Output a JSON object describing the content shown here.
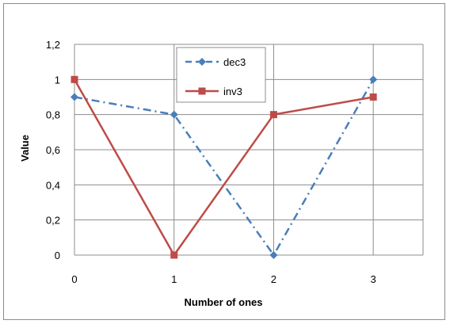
{
  "chart_data": {
    "type": "line",
    "title": "",
    "xlabel": "Number of ones",
    "ylabel": "Value",
    "x": [
      0,
      1,
      2,
      3
    ],
    "xlim": [
      0,
      3.5
    ],
    "ylim": [
      0,
      1.2
    ],
    "y_ticks": [
      "0",
      "0,2",
      "0,4",
      "0,6",
      "0,8",
      "1",
      "1,2"
    ],
    "x_ticks": [
      "0",
      "1",
      "2",
      "3"
    ],
    "grid": true,
    "legend_position": "top-center",
    "series": [
      {
        "name": "dec3",
        "values": [
          0.9,
          0.8,
          0.0,
          1.0
        ],
        "color": "#4a7ebb",
        "marker": "diamond",
        "line_style": "dash-dot"
      },
      {
        "name": "inv3",
        "values": [
          1.0,
          0.0,
          0.8,
          0.9
        ],
        "color": "#be4b48",
        "marker": "square",
        "line_style": "solid"
      }
    ]
  }
}
